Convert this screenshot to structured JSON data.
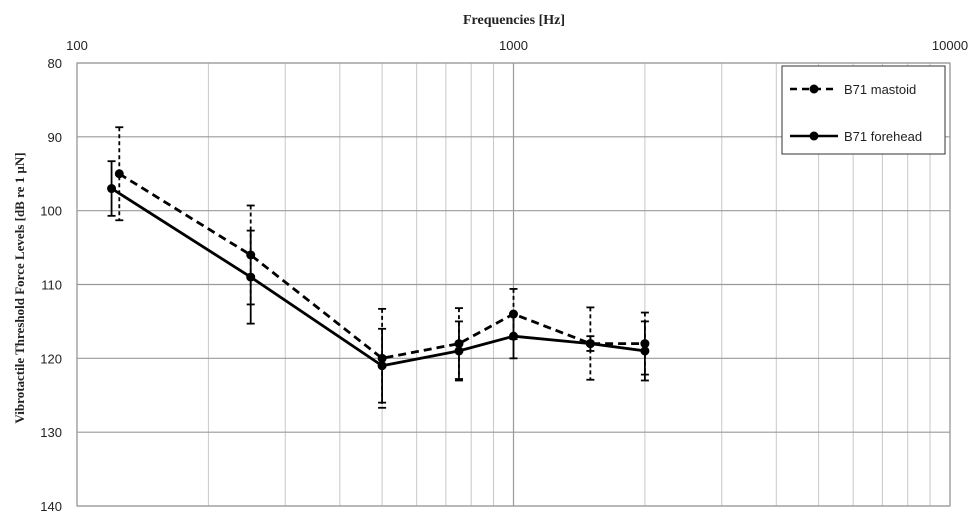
{
  "chart_data": {
    "type": "line",
    "title": "Frequencies [Hz]",
    "xlabel": "Frequencies [Hz]",
    "ylabel": "Vibrotactile Threshold Force Levels [dB re 1 µN]",
    "x_scale": "log",
    "x_axis_position": "top",
    "xlim": [
      100,
      10000
    ],
    "x_ticks": [
      "100",
      "1000",
      "10000"
    ],
    "y_reversed": true,
    "ylim": [
      80,
      140
    ],
    "y_ticks": [
      "80",
      "90",
      "100",
      "110",
      "120",
      "130",
      "140"
    ],
    "grid": true,
    "legend_position": "top-right",
    "series": [
      {
        "name": "B71 mastoid",
        "style": "dashed",
        "color": "#000000",
        "x": [
          125,
          250,
          500,
          750,
          1000,
          1500,
          2000
        ],
        "y": [
          95,
          106,
          120,
          118,
          114,
          118,
          118
        ],
        "err_low": [
          88.7,
          99.3,
          113.3,
          113.2,
          110.6,
          113.1,
          113.8
        ],
        "err_high": [
          101.3,
          112.7,
          126.7,
          122.8,
          117.4,
          122.9,
          122.2
        ]
      },
      {
        "name": "B71 forehead",
        "style": "solid",
        "color": "#000000",
        "x": [
          120,
          250,
          500,
          750,
          1000,
          1500,
          2000
        ],
        "y": [
          97,
          109,
          121,
          119,
          117,
          118,
          119
        ],
        "err_low": [
          93.3,
          102.7,
          116,
          115,
          114,
          117,
          115
        ],
        "err_high": [
          100.7,
          115.3,
          126,
          123,
          120,
          119,
          123
        ]
      }
    ]
  }
}
